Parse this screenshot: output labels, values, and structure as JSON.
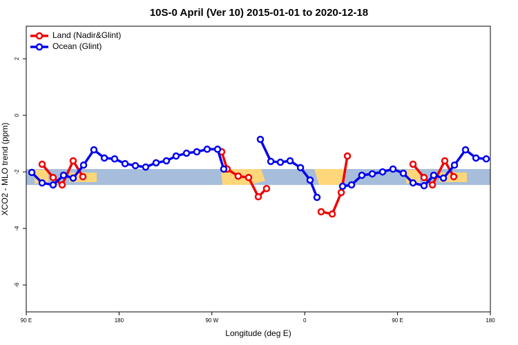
{
  "chart_data": {
    "type": "line",
    "title": "10S-0 April (Ver 10)   2015-01-01 to 2020-12-18",
    "xlabel": "Longitude (deg E)",
    "ylabel": "XCO2 - MLO trend (ppm)",
    "xlim": [
      90,
      540
    ],
    "ylim": [
      -6.95,
      3.15
    ],
    "xticks": [
      {
        "value": 90,
        "label": "90 E"
      },
      180,
      {
        "value": 270,
        "label": "90 W"
      },
      {
        "value": 360,
        "label": "0"
      },
      {
        "value": 450,
        "label": "90 E"
      },
      {
        "value": 540,
        "label": "180"
      }
    ],
    "yticks": [
      2,
      0,
      -2,
      -4,
      -6
    ],
    "legend": "top-left",
    "series": [
      {
        "name": "Land (Nadir&Glint)",
        "color": "#ee0000",
        "x": [
          105.4,
          116.1,
          124.8,
          135.5,
          144.9,
          null,
          279.5,
          284.8,
          295.5,
          305.6,
          315.0,
          323.0,
          null,
          375.9,
          386.7,
          395.4,
          401.4,
          null,
          465.0,
          475.7,
          483.8,
          495.8,
          504.5
        ],
        "values": [
          -1.73,
          -2.2,
          -2.46,
          -1.61,
          -2.17,
          null,
          -1.29,
          -1.9,
          -2.15,
          -2.2,
          -2.88,
          -2.59,
          null,
          -3.41,
          -3.49,
          -2.73,
          -1.44,
          null,
          -1.73,
          -2.2,
          -2.46,
          -1.61,
          -2.17
        ]
      },
      {
        "name": "Ocean (Glint)",
        "color": "#0000ee",
        "x": [
          95.4,
          105.4,
          116.1,
          126.2,
          135.5,
          145.6,
          155.6,
          165.7,
          175.7,
          185.8,
          195.8,
          205.8,
          215.9,
          225.9,
          235.3,
          245.4,
          255.4,
          265.4,
          275.5,
          281.5,
          null,
          317.0,
          327.1,
          336.4,
          345.8,
          355.9,
          365.2,
          371.9,
          null,
          396.7,
          405.4,
          415.4,
          425.5,
          435.5,
          445.6,
          455.6,
          465.0,
          475.7,
          485.1,
          494.5,
          505.2,
          515.9,
          526.0,
          536.0
        ],
        "values": [
          -2.02,
          -2.39,
          -2.46,
          -2.12,
          -2.22,
          -1.76,
          -1.22,
          -1.51,
          -1.54,
          -1.71,
          -1.78,
          -1.83,
          -1.68,
          -1.61,
          -1.44,
          -1.34,
          -1.29,
          -1.2,
          -1.2,
          -1.9,
          null,
          -0.85,
          -1.63,
          -1.66,
          -1.61,
          -1.85,
          -2.29,
          -2.9,
          null,
          -2.51,
          -2.46,
          -2.12,
          -2.07,
          -2.0,
          -1.9,
          -2.05,
          -2.39,
          -2.49,
          -2.12,
          -2.22,
          -1.76,
          -1.22,
          -1.51,
          -1.54
        ]
      }
    ]
  }
}
